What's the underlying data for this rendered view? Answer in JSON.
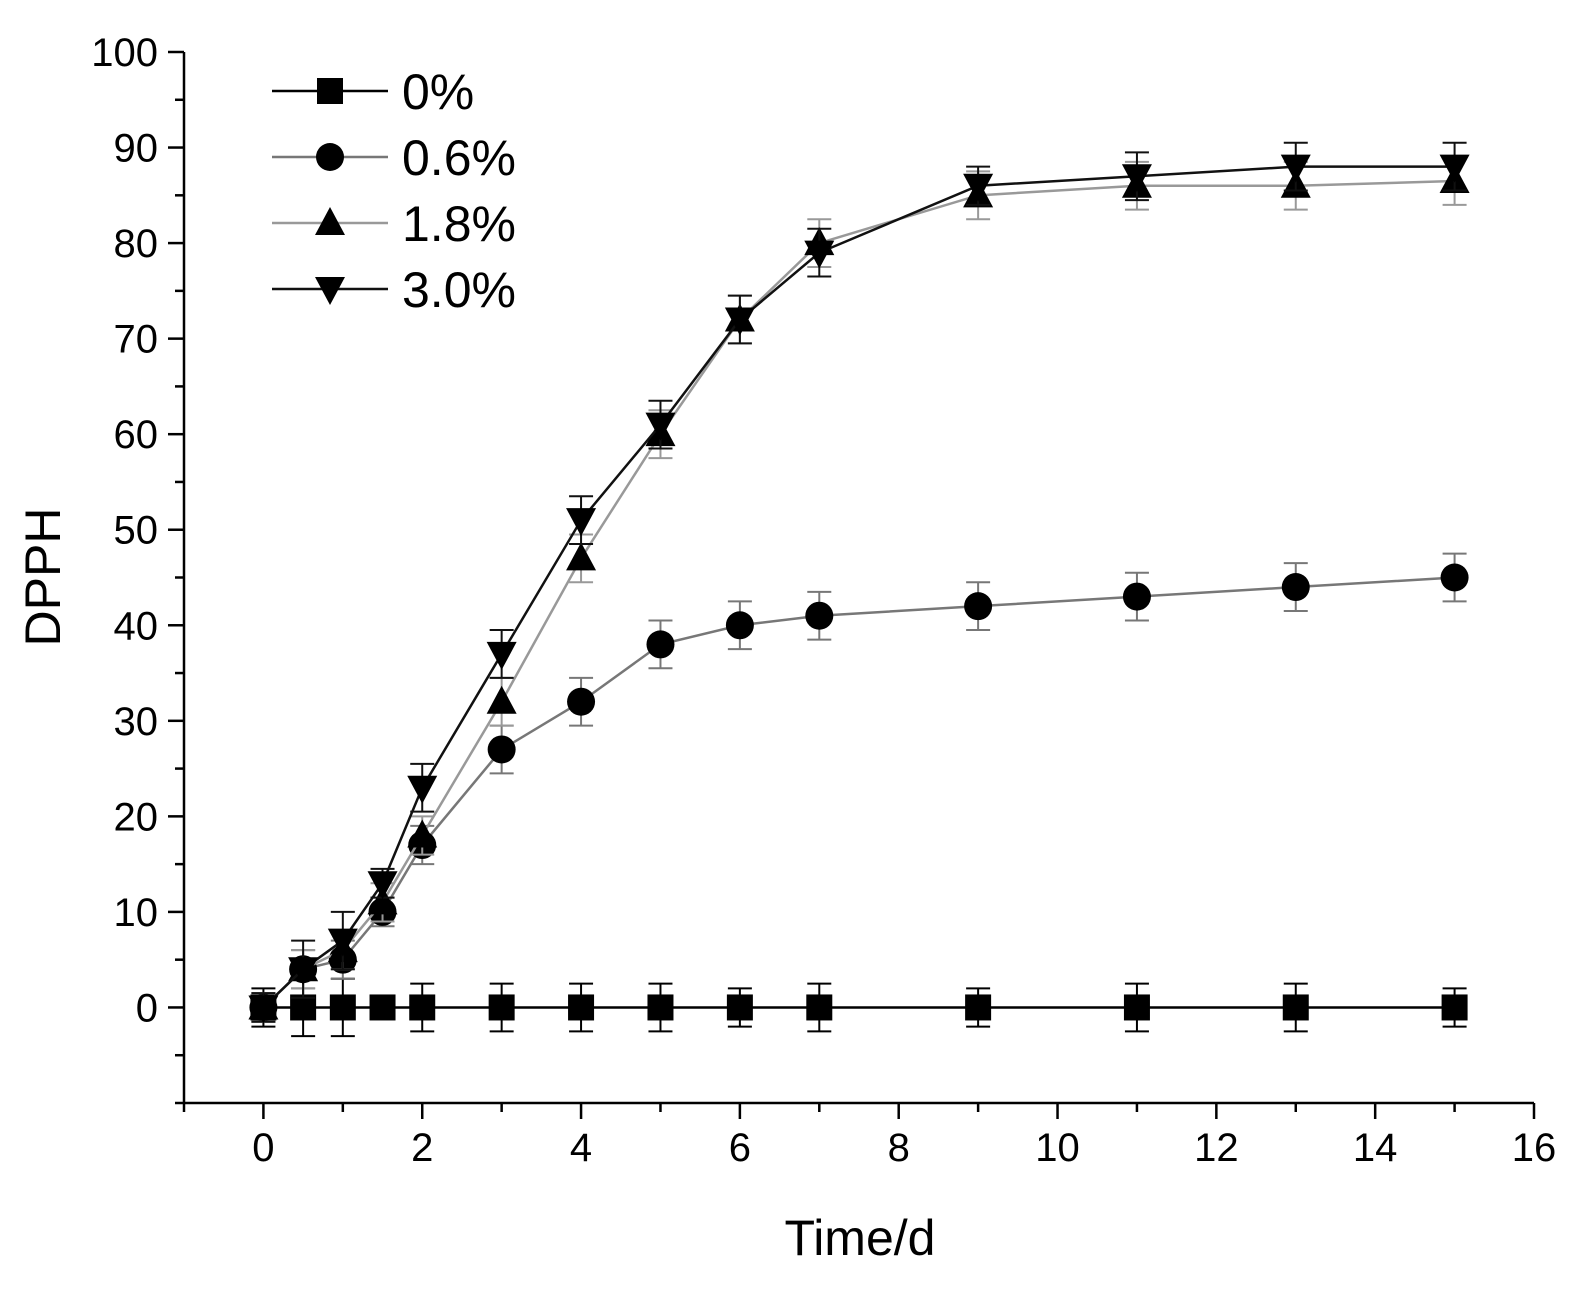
{
  "chart_data": {
    "type": "line",
    "title": "",
    "xlabel": "Time/d",
    "ylabel": "DPPH",
    "xlim": [
      -1,
      16
    ],
    "ylim": [
      -10,
      100
    ],
    "xticks": [
      0,
      2,
      4,
      6,
      8,
      10,
      12,
      14,
      16
    ],
    "yticks": [
      0,
      10,
      20,
      30,
      40,
      50,
      60,
      70,
      80,
      90,
      100
    ],
    "grid": false,
    "legend_position": "top-left",
    "x": [
      0,
      0.5,
      1,
      1.5,
      2,
      3,
      4,
      5,
      6,
      7,
      9,
      11,
      13,
      15
    ],
    "series": [
      {
        "name": "0%",
        "marker": "square",
        "line_color": "#000000",
        "values": [
          0,
          0,
          0,
          0,
          0,
          0,
          0,
          0,
          0,
          0,
          0,
          0,
          0,
          0
        ],
        "errors": [
          2,
          3,
          3,
          1,
          2.5,
          2.5,
          2.5,
          2.5,
          2,
          2.5,
          2,
          2.5,
          2.5,
          2
        ]
      },
      {
        "name": "0.6%",
        "marker": "circle",
        "line_color": "#777777",
        "values": [
          0,
          4,
          5,
          10,
          17,
          27,
          32,
          38,
          40,
          41,
          42,
          43,
          44,
          45
        ],
        "errors": [
          1.5,
          2,
          2,
          1.5,
          2,
          2.5,
          2.5,
          2.5,
          2.5,
          2.5,
          2.5,
          2.5,
          2.5,
          2.5
        ]
      },
      {
        "name": "1.8%",
        "marker": "triangle-up",
        "line_color": "#999999",
        "values": [
          0,
          4,
          6,
          11,
          18,
          32,
          47,
          60,
          72,
          80,
          85,
          86,
          86,
          86.5
        ],
        "errors": [
          1.5,
          2,
          2,
          2,
          2,
          2.5,
          2.5,
          2.5,
          2.5,
          2.5,
          2.5,
          2.5,
          2.5,
          2.5
        ]
      },
      {
        "name": "3.0%",
        "marker": "triangle-down",
        "line_color": "#111111",
        "values": [
          0,
          4,
          7,
          13,
          23,
          37,
          51,
          61,
          72,
          79,
          86,
          87,
          88,
          88
        ],
        "errors": [
          1.5,
          3,
          3,
          1.5,
          2.5,
          2.5,
          2.5,
          2.5,
          2.5,
          2.5,
          2,
          2.5,
          2.5,
          2.5
        ]
      }
    ]
  }
}
